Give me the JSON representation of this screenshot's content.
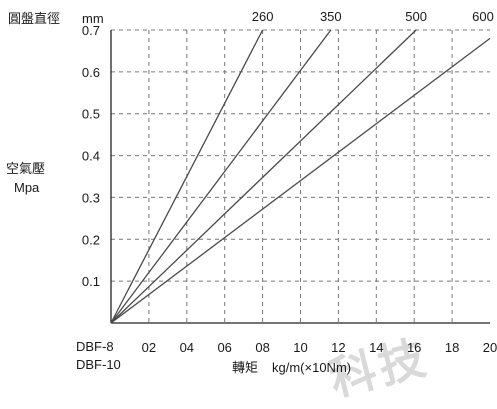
{
  "header": {
    "dia_label": "圓盤直徑",
    "dia_unit": "mm"
  },
  "y_title": {
    "line1": "空氣壓",
    "line2": "Mpa"
  },
  "x_left": {
    "line1": "DBF-8",
    "line2": "DBF-10"
  },
  "x_title": {
    "text": "轉矩",
    "unit": "kg/m(×10Nm)"
  },
  "watermark": {
    "text": "科技"
  },
  "colors": {
    "line": "#4a4a4a",
    "grid": "#777777",
    "axis": "#222222"
  },
  "chart_data": {
    "type": "line",
    "xlabel": "轉矩 kg/m(×10Nm)",
    "ylabel": "空氣壓 Mpa",
    "xlim": [
      0,
      20
    ],
    "ylim": [
      0,
      0.7
    ],
    "x_ticks": [
      "02",
      "04",
      "06",
      "08",
      "10",
      "12",
      "14",
      "16",
      "18",
      "20"
    ],
    "y_ticks": [
      "0.1",
      "0.2",
      "0.3",
      "0.4",
      "0.5",
      "0.6",
      "0.7"
    ],
    "grid": true,
    "series": [
      {
        "name": "260",
        "x": [
          0,
          8.0
        ],
        "y": [
          0,
          0.7
        ]
      },
      {
        "name": "350",
        "x": [
          0,
          11.6
        ],
        "y": [
          0,
          0.7
        ]
      },
      {
        "name": "500",
        "x": [
          0,
          16.1
        ],
        "y": [
          0,
          0.7
        ]
      },
      {
        "name": "600",
        "x": [
          0,
          20.0
        ],
        "y": [
          0,
          0.68
        ]
      }
    ]
  }
}
